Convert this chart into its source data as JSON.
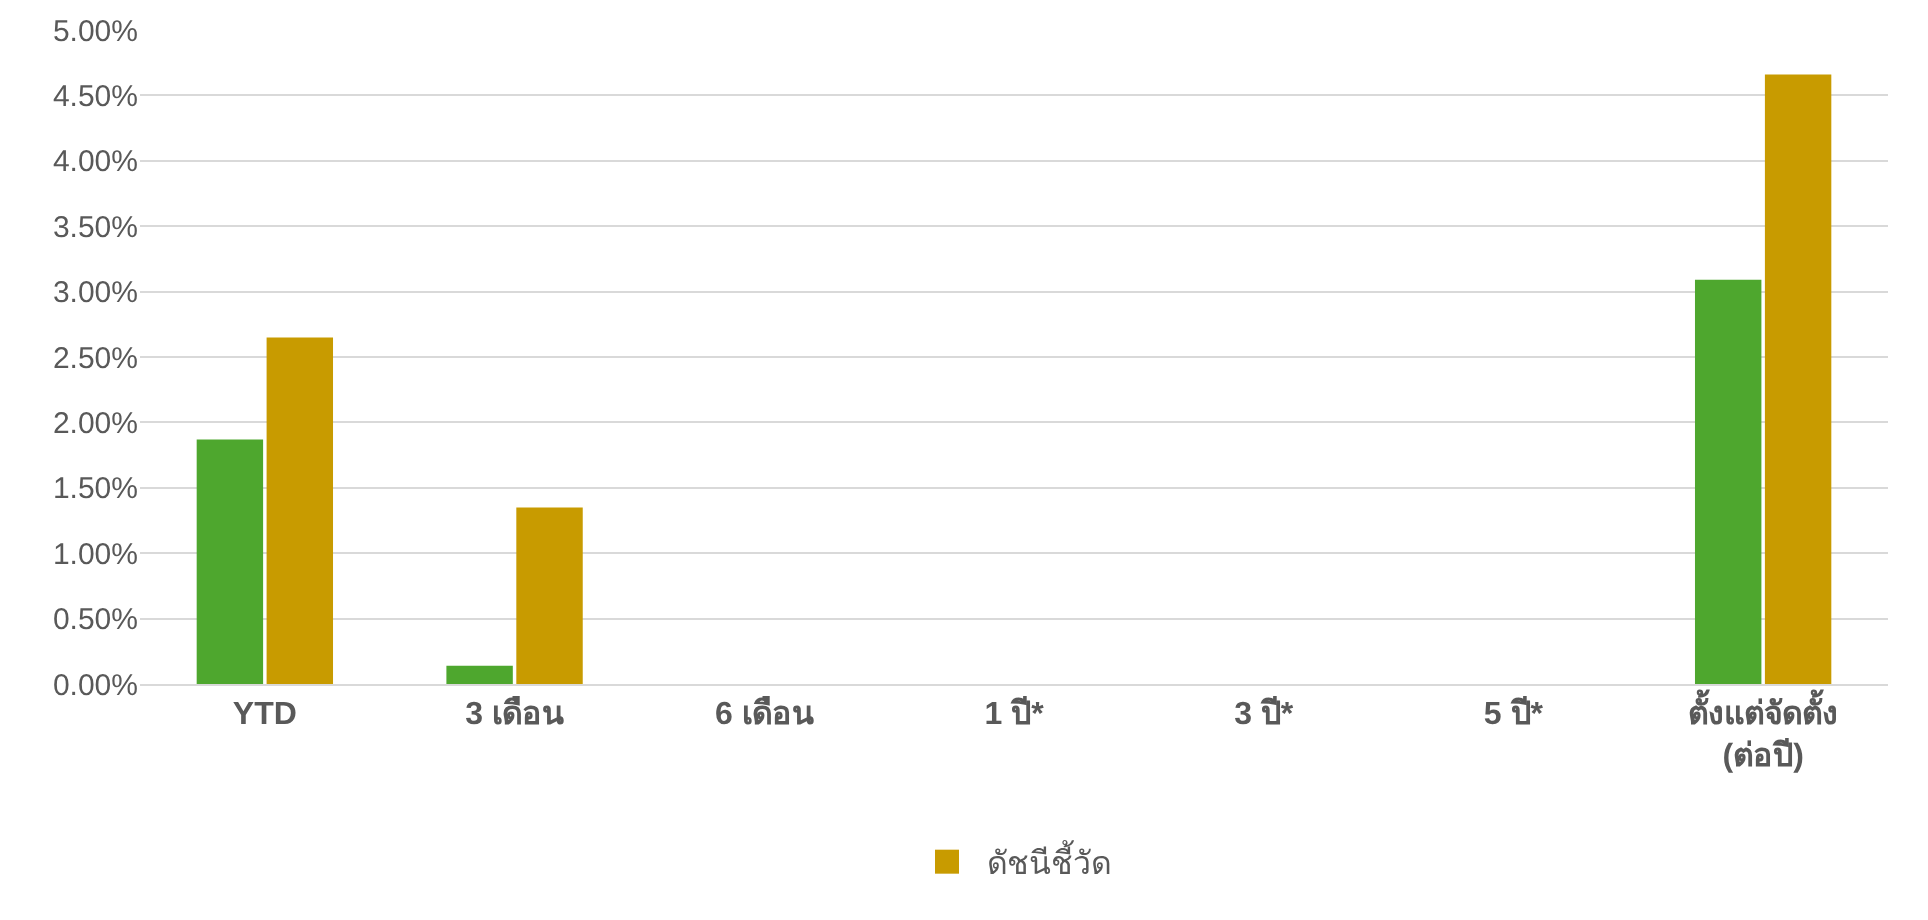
{
  "chart_data": {
    "type": "bar",
    "categories": [
      "YTD",
      "3 เดือน",
      "6 เดือน",
      "1 ปี*",
      "3 ปี*",
      "5 ปี*",
      "ตั้งแต่จัดตั้ง\n(ต่อปี)"
    ],
    "series": [
      {
        "color": "#4ea72e",
        "values": [
          1.87,
          0.14,
          null,
          null,
          null,
          null,
          3.09
        ]
      },
      {
        "name": "ดัชนีชี้วัด",
        "color": "#c89b00",
        "values": [
          2.65,
          1.35,
          null,
          null,
          null,
          null,
          4.66
        ]
      }
    ],
    "ylim": [
      0,
      5
    ],
    "yticks": [
      {
        "value": 0,
        "label": "0.00%"
      },
      {
        "value": 0.5,
        "label": "0.50%"
      },
      {
        "value": 1,
        "label": "1.00%"
      },
      {
        "value": 1.5,
        "label": "1.50%"
      },
      {
        "value": 2,
        "label": "2.00%"
      },
      {
        "value": 2.5,
        "label": "2.50%"
      },
      {
        "value": 3,
        "label": "3.00%"
      },
      {
        "value": 3.5,
        "label": "3.50%"
      },
      {
        "value": 4,
        "label": "4.00%"
      },
      {
        "value": 4.5,
        "label": "4.50%"
      },
      {
        "value": 5,
        "label": "5.00%"
      }
    ],
    "grid": "y",
    "legend": "bottom"
  }
}
